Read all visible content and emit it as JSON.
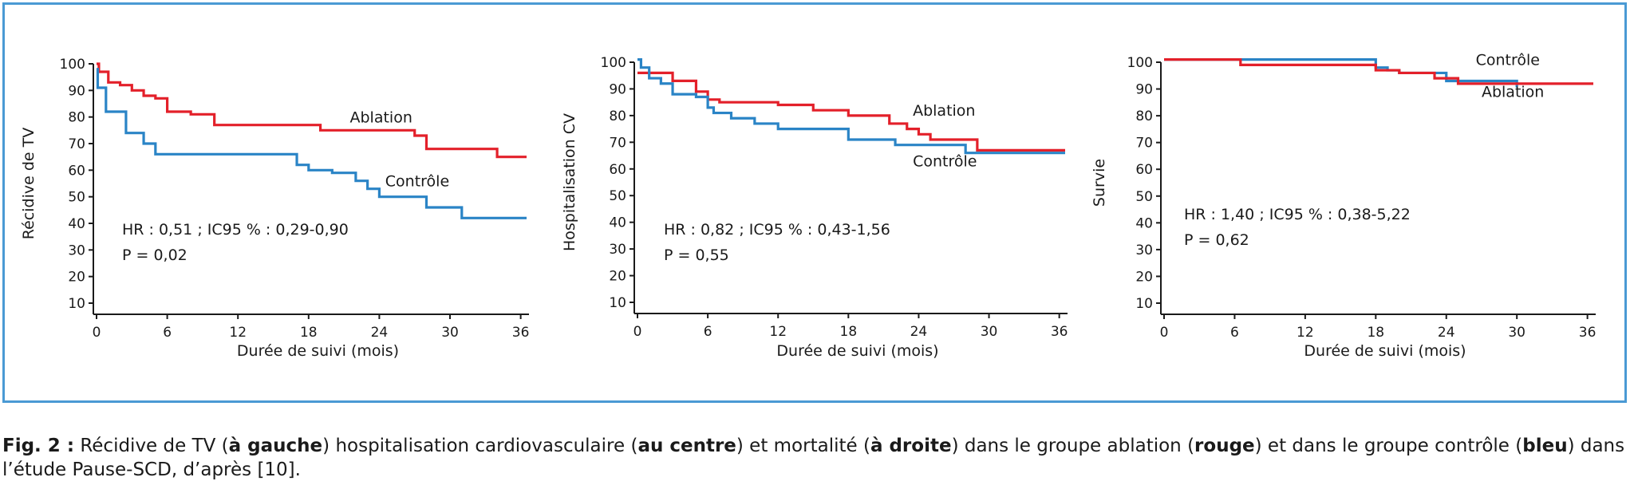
{
  "colors": {
    "ablation": "#e3202a",
    "controle": "#2a84c6",
    "frame": "#4a9ad4",
    "axis": "#1a1a1a"
  },
  "chart_data": [
    {
      "type": "line",
      "xlabel": "Durée de suivi (mois)",
      "ylabel": "Récidive de TV",
      "xticks": [
        0,
        6,
        12,
        18,
        24,
        30,
        36
      ],
      "yticks": [
        10,
        20,
        30,
        40,
        50,
        60,
        70,
        80,
        90,
        100
      ],
      "xlim": [
        0,
        36.5
      ],
      "ylim": [
        10,
        100
      ],
      "step": true,
      "grid": false,
      "stat_lines": [
        "HR : 0,51 ; IC95 % : 0,29-0,90",
        "P = 0,02"
      ],
      "series": [
        {
          "name": "Ablation",
          "color_key": "ablation",
          "label_x": 21.5,
          "label_y": 78,
          "points": [
            [
              0,
              100
            ],
            [
              0.2,
              97
            ],
            [
              1,
              93
            ],
            [
              2,
              92
            ],
            [
              3,
              90
            ],
            [
              4,
              88
            ],
            [
              5,
              87
            ],
            [
              6,
              82
            ],
            [
              8,
              81
            ],
            [
              10,
              77
            ],
            [
              19,
              75
            ],
            [
              27,
              73
            ],
            [
              28,
              68
            ],
            [
              33,
              68
            ],
            [
              34,
              65
            ],
            [
              36.5,
              65
            ]
          ]
        },
        {
          "name": "Contrôle",
          "color_key": "controle",
          "label_x": 24.5,
          "label_y": 54,
          "points": [
            [
              0,
              98
            ],
            [
              0.1,
              91
            ],
            [
              0.8,
              82
            ],
            [
              2.5,
              74
            ],
            [
              4,
              70
            ],
            [
              5,
              66
            ],
            [
              17,
              62
            ],
            [
              18,
              60
            ],
            [
              20,
              59
            ],
            [
              22,
              56
            ],
            [
              23,
              53
            ],
            [
              24,
              50
            ],
            [
              28,
              46
            ],
            [
              31,
              42
            ],
            [
              36.5,
              42
            ]
          ]
        }
      ]
    },
    {
      "type": "line",
      "xlabel": "",
      "ylabel": "Hospitalisation CV",
      "xticks": [
        0,
        6,
        12,
        18,
        24,
        30,
        36
      ],
      "yticks": [
        10,
        20,
        30,
        40,
        50,
        60,
        70,
        80,
        90,
        100
      ],
      "xlim": [
        0,
        36.5
      ],
      "ylim": [
        10,
        100
      ],
      "step": true,
      "grid": false,
      "stat_lines": [
        "HR : 0,82 ; IC95 % : 0,43-1,56",
        "P = 0,55"
      ],
      "series": [
        {
          "name": "Ablation",
          "color_key": "ablation",
          "label_x": 23.5,
          "label_y": 80,
          "points": [
            [
              0,
              96
            ],
            [
              3,
              93
            ],
            [
              5,
              89
            ],
            [
              6,
              86
            ],
            [
              7,
              85
            ],
            [
              12,
              84
            ],
            [
              15,
              82
            ],
            [
              18,
              80
            ],
            [
              21.5,
              77
            ],
            [
              23,
              75
            ],
            [
              24,
              73
            ],
            [
              25,
              71
            ],
            [
              29,
              67
            ],
            [
              36.5,
              67
            ]
          ]
        },
        {
          "name": "Contrôle",
          "color_key": "controle",
          "label_x": 23.5,
          "label_y": 61,
          "points": [
            [
              0,
              101
            ],
            [
              0.3,
              98
            ],
            [
              1,
              94
            ],
            [
              2,
              92
            ],
            [
              3,
              88
            ],
            [
              5,
              87
            ],
            [
              6,
              83
            ],
            [
              6.5,
              81
            ],
            [
              8,
              79
            ],
            [
              10,
              77
            ],
            [
              12,
              75
            ],
            [
              18,
              71
            ],
            [
              22,
              69
            ],
            [
              28,
              66
            ],
            [
              36.5,
              66
            ]
          ]
        }
      ]
    },
    {
      "type": "line",
      "xlabel": "",
      "ylabel": "Survie",
      "xticks": [
        0,
        6,
        12,
        18,
        24,
        30,
        36
      ],
      "yticks": [
        10,
        20,
        30,
        40,
        50,
        60,
        70,
        80,
        90,
        100
      ],
      "xlim": [
        0,
        36.5
      ],
      "ylim": [
        10,
        100
      ],
      "step": true,
      "grid": false,
      "stat_lines": [
        "HR : 1,40 ; IC95 % : 0,38-5,22",
        "P = 0,62"
      ],
      "series": [
        {
          "name": "Contrôle",
          "color_key": "controle",
          "label_x": 26.5,
          "label_y": 99,
          "points": [
            [
              0,
              101
            ],
            [
              18,
              98
            ],
            [
              19,
              97
            ],
            [
              20,
              96
            ],
            [
              24,
              93
            ],
            [
              30,
              91
            ],
            [
              30.01,
              91
            ]
          ]
        },
        {
          "name": "Ablation",
          "color_key": "ablation",
          "label_x": 27,
          "label_y": 87,
          "points": [
            [
              0,
              101
            ],
            [
              6.5,
              99
            ],
            [
              18,
              97
            ],
            [
              20,
              96
            ],
            [
              23,
              94
            ],
            [
              25,
              92
            ],
            [
              36.5,
              92
            ]
          ]
        }
      ]
    }
  ],
  "caption": {
    "fig": "Fig. 2 :",
    "segments": [
      {
        "text": " Récidive de TV (",
        "bold": false
      },
      {
        "text": "à gauche",
        "bold": true
      },
      {
        "text": ") hospitalisation cardiovasculaire (",
        "bold": false
      },
      {
        "text": "au centre",
        "bold": true
      },
      {
        "text": ") et mortalité (",
        "bold": false
      },
      {
        "text": "à droite",
        "bold": true
      },
      {
        "text": ") dans le groupe ablation (",
        "bold": false
      },
      {
        "text": "rouge",
        "bold": true
      },
      {
        "text": ") et dans le groupe contrôle (",
        "bold": false
      },
      {
        "text": "bleu",
        "bold": true
      },
      {
        "text": ") dans l’étude Pause-SCD, d’après [10].",
        "bold": false
      }
    ]
  }
}
